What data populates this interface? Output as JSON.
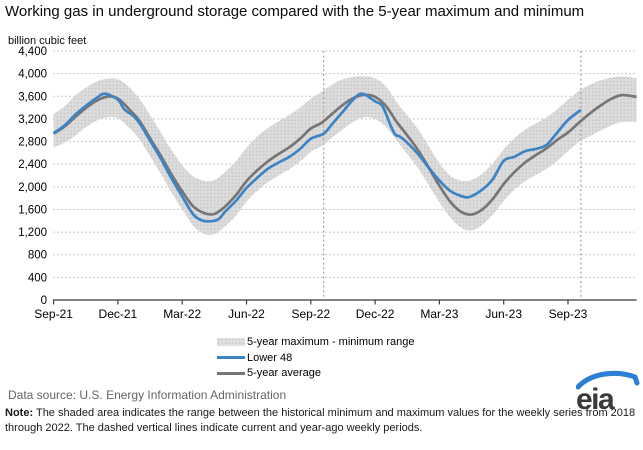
{
  "title": "Working gas in underground storage compared with the 5-year maximum and minimum",
  "chart_data": {
    "type": "area",
    "title": "Working gas in underground storage compared with the 5-year maximum and minimum",
    "xlabel": "",
    "ylabel": "billion cubic feet",
    "ylim": [
      0,
      4400
    ],
    "grid": true,
    "legend_position": "bottom-center",
    "y_ticks": [
      0,
      400,
      800,
      1200,
      1600,
      2000,
      2400,
      2800,
      3200,
      3600,
      4000,
      4400
    ],
    "y_tick_labels": [
      "0",
      "400",
      "800",
      "1,200",
      "1,600",
      "2,000",
      "2,400",
      "2,800",
      "3,200",
      "3,600",
      "4,000",
      "4,400"
    ],
    "x_tick_labels": [
      "Sep-21",
      "Dec-21",
      "Mar-22",
      "Jun-22",
      "Sep-22",
      "Dec-22",
      "Mar-23",
      "Jun-23",
      "Sep-23"
    ],
    "x_tick_months": [
      0,
      3,
      6,
      9,
      12,
      15,
      18,
      21,
      24
    ],
    "x_range_months": [
      0,
      27.2
    ],
    "dashed_vlines_months": [
      12.6,
      24.6
    ],
    "legend": [
      {
        "label": "5-year maximum - minimum range",
        "swatch": "band"
      },
      {
        "label": "Lower 48",
        "swatch": "line",
        "color": "#3c84c4"
      },
      {
        "label": "5-year average",
        "swatch": "line",
        "color": "#767676"
      }
    ],
    "colors": {
      "band_fill": "#dcdcdc",
      "band_dot": "#c9c9c9",
      "lower48_line": "#3c84c4",
      "average_line": "#767676",
      "gridline": "#c8c8c8",
      "axis": "#3c3c3c",
      "dashed_vline": "#a3a3a3"
    },
    "band_t_months": [
      0,
      0.5,
      1,
      1.5,
      2,
      2.5,
      3,
      3.5,
      4,
      4.5,
      5,
      5.5,
      6,
      6.5,
      7,
      7.5,
      8,
      8.5,
      9,
      9.5,
      10,
      10.5,
      11,
      11.5,
      12,
      12.5,
      13,
      13.5,
      14,
      14.5,
      15,
      15.5,
      16,
      16.5,
      17,
      17.5,
      18,
      18.5,
      19,
      19.5,
      20,
      20.5,
      21,
      21.5,
      22,
      22.5,
      23,
      23.5,
      24,
      24.5,
      25,
      25.5,
      26,
      26.5,
      27.2
    ],
    "series": [
      {
        "name": "5-year maximum",
        "values": [
          3290,
          3420,
          3610,
          3750,
          3860,
          3910,
          3900,
          3770,
          3560,
          3270,
          2960,
          2650,
          2380,
          2190,
          2110,
          2120,
          2260,
          2450,
          2690,
          2890,
          3040,
          3160,
          3270,
          3400,
          3560,
          3680,
          3810,
          3900,
          3945,
          3955,
          3920,
          3780,
          3500,
          3260,
          3020,
          2720,
          2420,
          2200,
          2110,
          2120,
          2230,
          2420,
          2660,
          2860,
          3010,
          3120,
          3230,
          3370,
          3540,
          3690,
          3800,
          3880,
          3930,
          3950,
          3920
        ]
      },
      {
        "name": "5-year minimum",
        "values": [
          2690,
          2780,
          2900,
          3050,
          3170,
          3230,
          3210,
          3050,
          2840,
          2540,
          2230,
          1900,
          1600,
          1320,
          1170,
          1160,
          1300,
          1490,
          1740,
          1930,
          2080,
          2200,
          2310,
          2450,
          2620,
          2720,
          2870,
          3020,
          3150,
          3230,
          3200,
          3060,
          2820,
          2580,
          2330,
          2030,
          1730,
          1460,
          1280,
          1230,
          1330,
          1510,
          1750,
          1950,
          2100,
          2210,
          2320,
          2460,
          2630,
          2790,
          2890,
          2990,
          3080,
          3140,
          3150
        ]
      },
      {
        "name": "5-year average",
        "values": [
          2940,
          3060,
          3230,
          3390,
          3520,
          3595,
          3560,
          3380,
          3170,
          2860,
          2550,
          2220,
          1920,
          1660,
          1540,
          1520,
          1650,
          1850,
          2100,
          2290,
          2450,
          2580,
          2700,
          2850,
          3030,
          3130,
          3290,
          3450,
          3570,
          3625,
          3590,
          3430,
          3150,
          2910,
          2650,
          2340,
          2020,
          1740,
          1560,
          1510,
          1600,
          1790,
          2050,
          2260,
          2430,
          2560,
          2680,
          2830,
          2960,
          3130,
          3290,
          3430,
          3550,
          3620,
          3590
        ]
      },
      {
        "name": "Lower 48",
        "t_months": [
          0,
          0.5,
          1,
          1.5,
          2,
          2.4,
          3,
          3.3,
          3.7,
          4,
          4.5,
          5,
          5.5,
          6,
          6.5,
          6.9,
          7.3,
          7.7,
          8,
          8.5,
          9,
          9.5,
          10,
          10.5,
          11,
          11.5,
          12,
          12.6,
          13,
          13.5,
          14,
          14.4,
          15,
          15.35,
          15.75,
          15.95,
          16.15,
          16.5,
          17,
          17.5,
          18,
          18.5,
          19,
          19.4,
          20,
          20.5,
          21,
          21.5,
          22,
          22.5,
          23,
          23.5,
          24,
          24.6
        ],
        "values": [
          2950,
          3080,
          3270,
          3430,
          3570,
          3645,
          3540,
          3370,
          3260,
          3130,
          2820,
          2500,
          2150,
          1830,
          1520,
          1410,
          1390,
          1430,
          1560,
          1750,
          1980,
          2160,
          2320,
          2430,
          2530,
          2670,
          2850,
          2940,
          3110,
          3330,
          3550,
          3645,
          3510,
          3420,
          3060,
          2920,
          2890,
          2780,
          2580,
          2340,
          2110,
          1930,
          1840,
          1820,
          1950,
          2140,
          2460,
          2530,
          2630,
          2670,
          2740,
          2960,
          3180,
          3360
        ]
      }
    ]
  },
  "footer": {
    "datasource_label": "Data source:",
    "datasource": "U.S. Energy Information Administration",
    "note_label": "Note:",
    "note": "The shaded area indicates the range between the historical minimum and maximum values for the weekly series from 2018 through 2022. The dashed vertical lines indicate current and year-ago weekly periods.",
    "logo_text": "eia"
  }
}
